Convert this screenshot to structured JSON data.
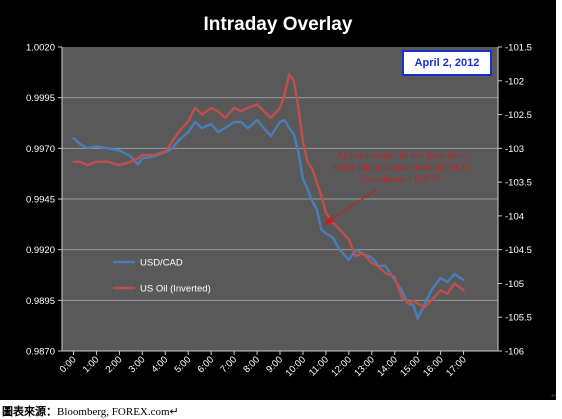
{
  "chart_data": {
    "type": "line",
    "title": "Intraday Overlay",
    "date_label": "April 2, 2012",
    "annotation_lines": [
      "As you can see the two have been",
      "nearly identical since midnight (ET)",
      "Correlation = 0.9775"
    ],
    "x_ticks": [
      "0:00",
      "1:00",
      "2:00",
      "3:00",
      "4:00",
      "5:00",
      "6:00",
      "7:00",
      "8:00",
      "9:00",
      "10:00",
      "11:00",
      "12:00",
      "13:00",
      "14:00",
      "15:00",
      "16:00",
      "17:00"
    ],
    "xlim": [
      -0.5,
      18.5
    ],
    "y_left_ticks": [
      "1.0020",
      "0.9995",
      "0.9970",
      "0.9945",
      "0.9920",
      "0.9895",
      "0.9870"
    ],
    "y_left_lim": [
      0.987,
      1.002
    ],
    "y_right_ticks": [
      "-101.5",
      "-102",
      "-102.5",
      "-103",
      "-103.5",
      "-104",
      "-104.5",
      "-105",
      "-105.5",
      "-106"
    ],
    "y_right_lim": [
      -106,
      -101.5
    ],
    "grid": true,
    "legend_position": "lower-left",
    "series": [
      {
        "name": "USD/CAD",
        "axis": "left",
        "color": "#4a7ebb",
        "x": [
          0.0,
          0.3,
          0.6,
          1.0,
          1.5,
          2.0,
          2.5,
          2.8,
          3.0,
          3.5,
          4.0,
          4.3,
          4.6,
          5.0,
          5.3,
          5.6,
          6.0,
          6.3,
          6.6,
          7.0,
          7.3,
          7.6,
          8.0,
          8.3,
          8.6,
          9.0,
          9.2,
          9.4,
          9.6,
          9.8,
          10.0,
          10.2,
          10.4,
          10.6,
          10.8,
          11.0,
          11.3,
          11.6,
          12.0,
          12.3,
          12.6,
          13.0,
          13.3,
          13.6,
          14.0,
          14.3,
          14.6,
          14.8,
          15.0,
          15.3,
          15.6,
          16.0,
          16.3,
          16.6,
          17.0
        ],
        "y": [
          0.9975,
          0.9972,
          0.997,
          0.9971,
          0.997,
          0.9969,
          0.9966,
          0.9962,
          0.9965,
          0.9966,
          0.9968,
          0.997,
          0.9974,
          0.9978,
          0.9983,
          0.998,
          0.9982,
          0.9978,
          0.998,
          0.9983,
          0.9983,
          0.998,
          0.9984,
          0.998,
          0.9976,
          0.9983,
          0.9984,
          0.998,
          0.9977,
          0.9968,
          0.9955,
          0.995,
          0.9944,
          0.994,
          0.993,
          0.9928,
          0.9926,
          0.992,
          0.9915,
          0.992,
          0.9918,
          0.9916,
          0.9912,
          0.9912,
          0.9905,
          0.99,
          0.9893,
          0.9893,
          0.9886,
          0.9893,
          0.99,
          0.9906,
          0.9904,
          0.9908,
          0.9905
        ]
      },
      {
        "name": "US Oil (Inverted)",
        "axis": "right",
        "color": "#c0504d",
        "x": [
          0.0,
          0.3,
          0.6,
          1.0,
          1.5,
          2.0,
          2.5,
          2.8,
          3.0,
          3.5,
          4.0,
          4.3,
          4.6,
          5.0,
          5.3,
          5.6,
          6.0,
          6.3,
          6.6,
          7.0,
          7.3,
          7.6,
          8.0,
          8.3,
          8.6,
          9.0,
          9.2,
          9.4,
          9.6,
          9.8,
          10.0,
          10.2,
          10.4,
          10.6,
          10.8,
          11.0,
          11.3,
          11.6,
          12.0,
          12.3,
          12.6,
          13.0,
          13.3,
          13.6,
          14.0,
          14.3,
          14.6,
          14.8,
          15.0,
          15.3,
          15.6,
          16.0,
          16.3,
          16.6,
          17.0
        ],
        "y": [
          -103.2,
          -103.2,
          -103.25,
          -103.2,
          -103.2,
          -103.25,
          -103.2,
          -103.15,
          -103.1,
          -103.1,
          -103.05,
          -102.9,
          -102.75,
          -102.6,
          -102.4,
          -102.5,
          -102.4,
          -102.45,
          -102.55,
          -102.4,
          -102.45,
          -102.4,
          -102.35,
          -102.45,
          -102.55,
          -102.4,
          -102.2,
          -101.9,
          -102.0,
          -102.4,
          -102.9,
          -103.2,
          -103.3,
          -103.5,
          -103.7,
          -103.95,
          -104.1,
          -104.2,
          -104.35,
          -104.6,
          -104.55,
          -104.7,
          -104.75,
          -104.85,
          -104.9,
          -105.2,
          -105.3,
          -105.25,
          -105.3,
          -105.35,
          -105.25,
          -105.1,
          -105.15,
          -105.0,
          -105.1
        ]
      }
    ]
  },
  "source": {
    "label": "圖表來源",
    "colon": "：",
    "text": "Bloomberg, FOREX.com",
    "end_mark": "↵"
  },
  "corner_mark": "↵"
}
